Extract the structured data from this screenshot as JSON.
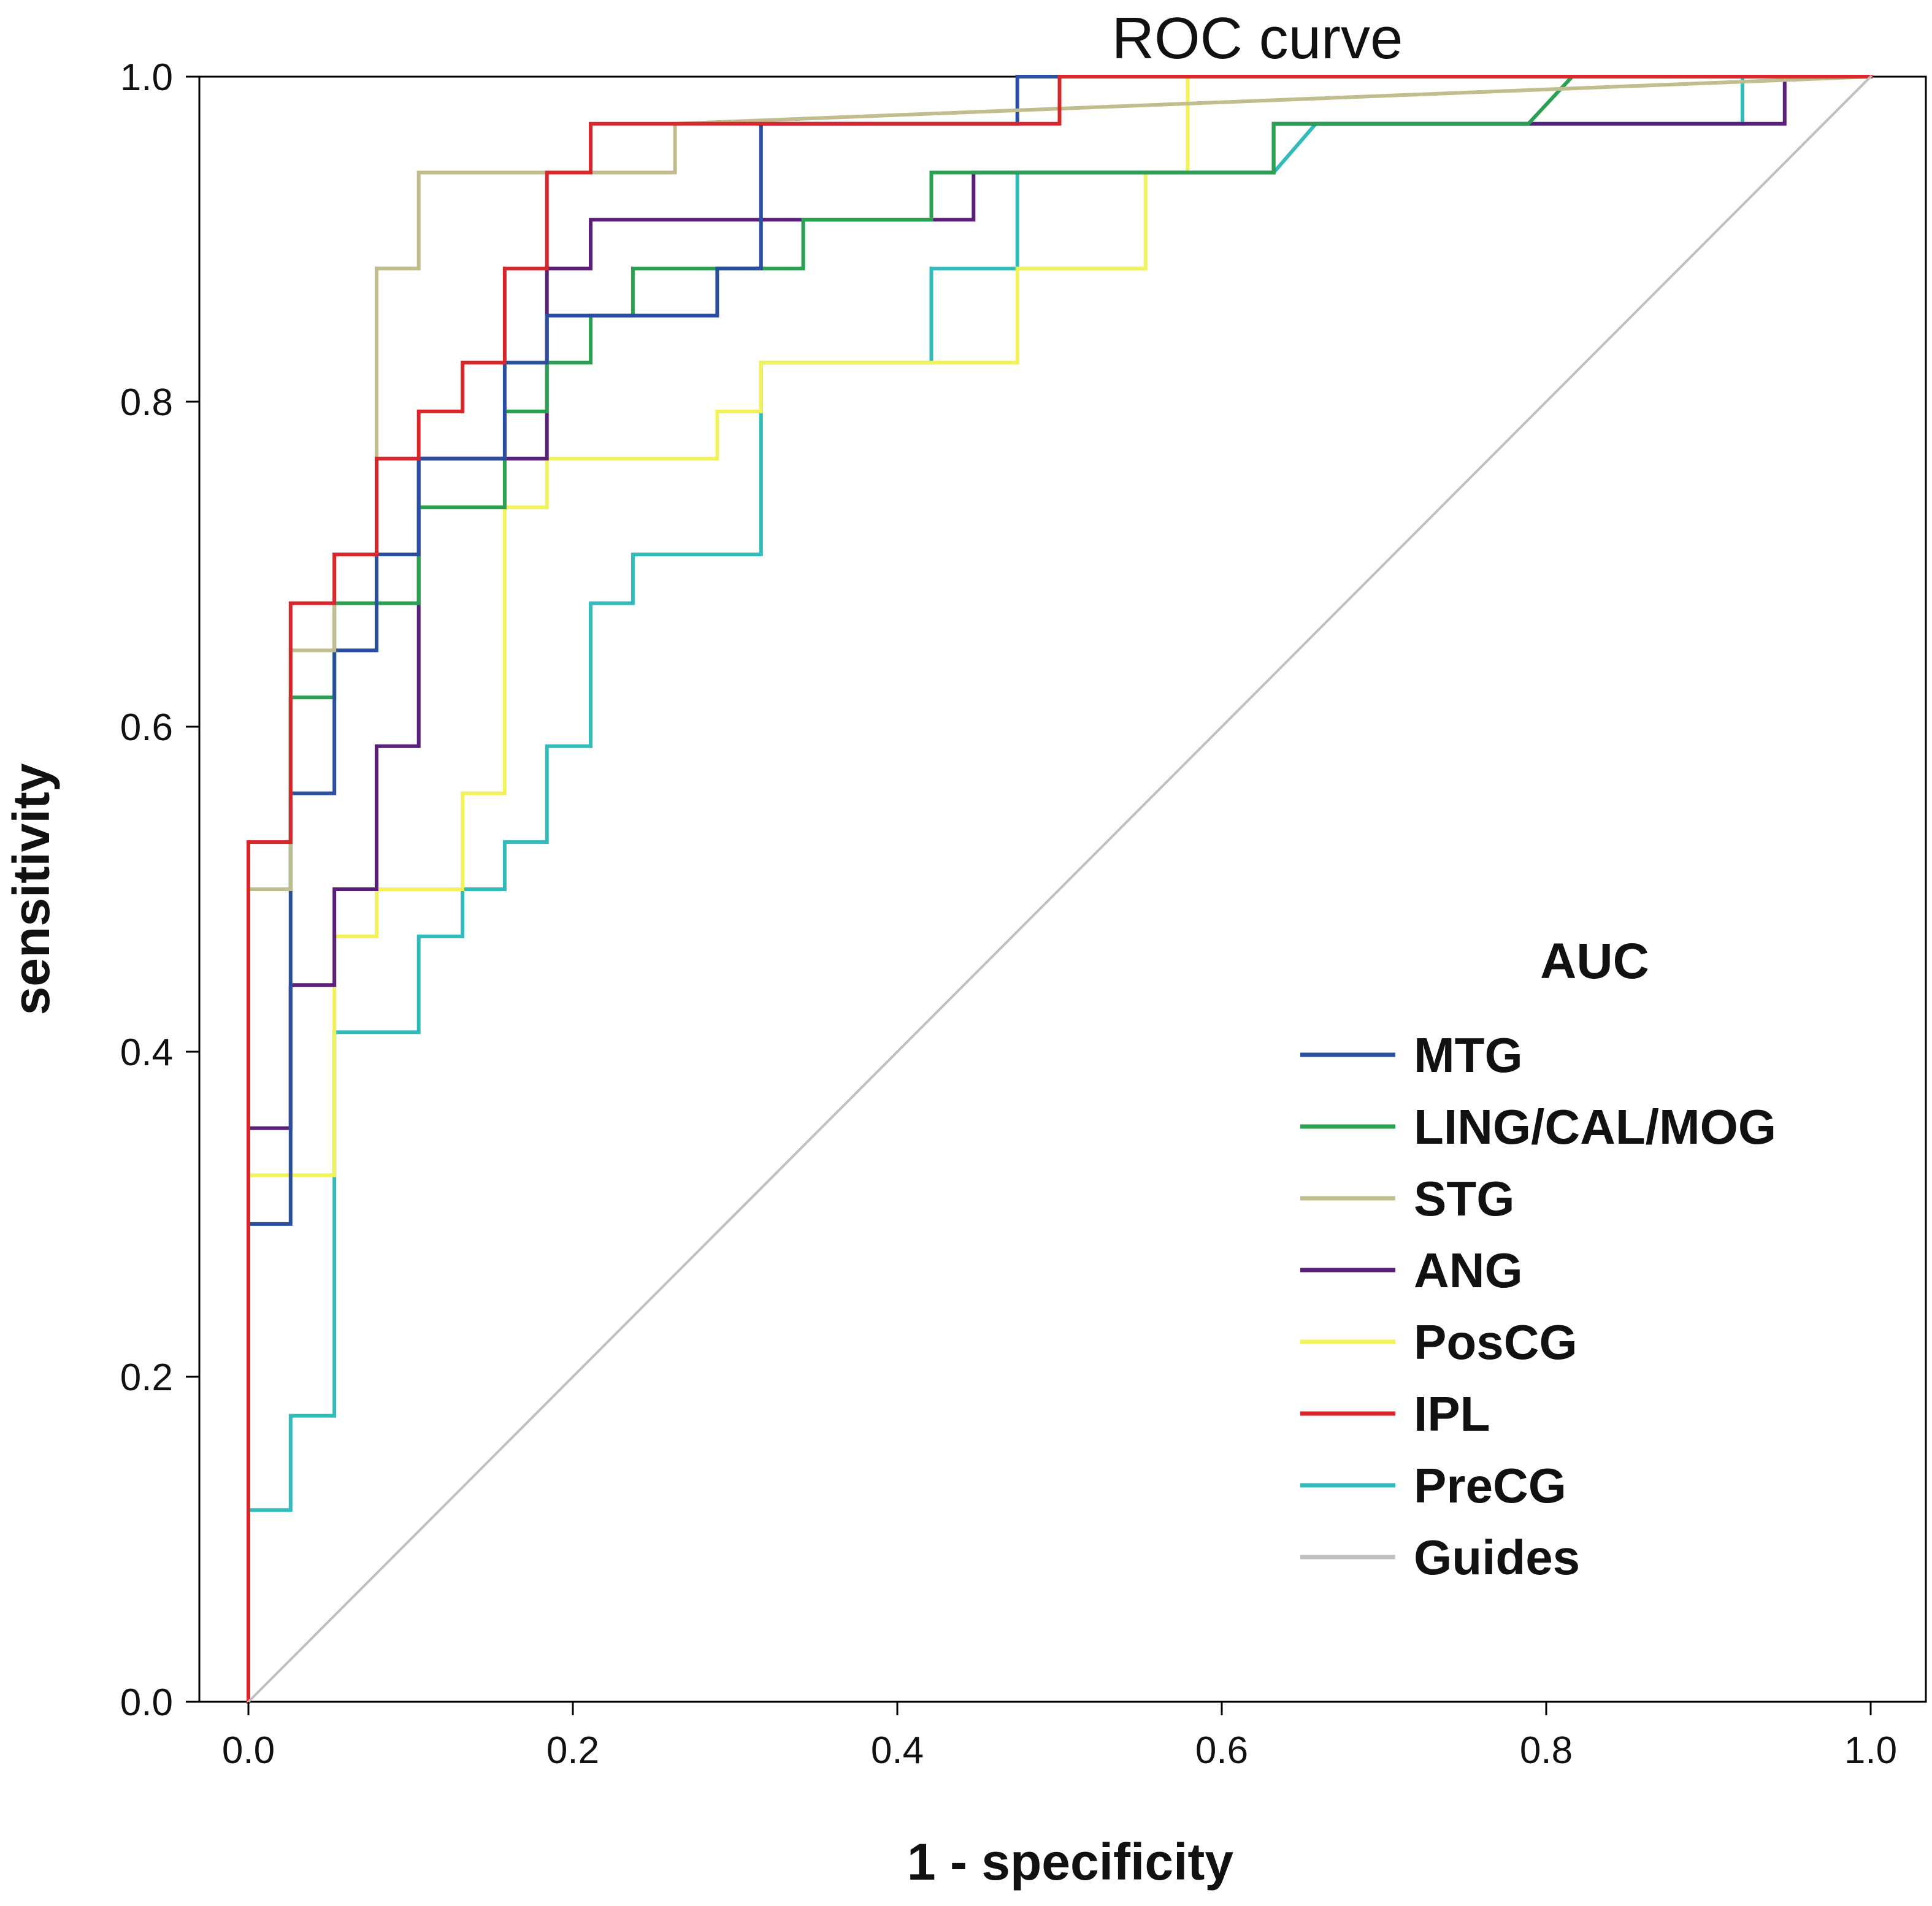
{
  "chart_data": {
    "type": "line",
    "title": "ROC curve",
    "xlabel": "1 - specificity",
    "ylabel": "sensitivity",
    "xlim": [
      0,
      1
    ],
    "ylim": [
      0,
      1
    ],
    "x_ticks": [
      "0.0",
      "0.2",
      "0.4",
      "0.6",
      "0.8",
      "1.0"
    ],
    "y_ticks": [
      "0.0",
      "0.2",
      "0.4",
      "0.6",
      "0.8",
      "1.0"
    ],
    "grid": false,
    "legend": {
      "title": "AUC",
      "position": "lower-right"
    },
    "series": [
      {
        "name": "PreCG",
        "color": "#33bbbb",
        "x": [
          0,
          0,
          0.026,
          0.026,
          0.053,
          0.053,
          0.105,
          0.105,
          0.132,
          0.132,
          0.158,
          0.158,
          0.184,
          0.184,
          0.211,
          0.211,
          0.237,
          0.237,
          0.316,
          0.316,
          0.421,
          0.421,
          0.474,
          0.474,
          0.632,
          0.658,
          0.921,
          0.921,
          1
        ],
        "y": [
          0,
          0.118,
          0.118,
          0.176,
          0.176,
          0.412,
          0.412,
          0.471,
          0.471,
          0.5,
          0.5,
          0.529,
          0.529,
          0.588,
          0.588,
          0.676,
          0.676,
          0.706,
          0.706,
          0.824,
          0.824,
          0.882,
          0.882,
          0.941,
          0.941,
          0.971,
          0.971,
          1,
          1
        ]
      },
      {
        "name": "PosCG",
        "color": "#f2f25a",
        "x": [
          0,
          0,
          0.053,
          0.053,
          0.079,
          0.079,
          0.132,
          0.132,
          0.158,
          0.158,
          0.184,
          0.184,
          0.289,
          0.289,
          0.316,
          0.316,
          0.474,
          0.474,
          0.553,
          0.553,
          0.579,
          0.579,
          1
        ],
        "y": [
          0,
          0.324,
          0.324,
          0.471,
          0.471,
          0.5,
          0.5,
          0.559,
          0.559,
          0.735,
          0.735,
          0.765,
          0.765,
          0.794,
          0.794,
          0.824,
          0.824,
          0.882,
          0.882,
          0.941,
          0.941,
          1,
          1
        ]
      },
      {
        "name": "ANG",
        "color": "#5a1f7a",
        "x": [
          0,
          0,
          0.026,
          0.026,
          0.053,
          0.053,
          0.079,
          0.079,
          0.105,
          0.105,
          0.184,
          0.184,
          0.211,
          0.211,
          0.447,
          0.447,
          0.632,
          0.632,
          0.947,
          0.947,
          1
        ],
        "y": [
          0,
          0.353,
          0.353,
          0.441,
          0.441,
          0.5,
          0.5,
          0.588,
          0.588,
          0.765,
          0.765,
          0.882,
          0.882,
          0.912,
          0.912,
          0.941,
          0.941,
          0.971,
          0.971,
          1,
          1
        ]
      },
      {
        "name": "LING/CAL/MOG",
        "color": "#2aa052",
        "x": [
          0,
          0,
          0.026,
          0.026,
          0.053,
          0.053,
          0.105,
          0.105,
          0.158,
          0.158,
          0.184,
          0.184,
          0.211,
          0.211,
          0.237,
          0.237,
          0.342,
          0.342,
          0.421,
          0.421,
          0.632,
          0.632,
          0.789,
          0.816,
          1
        ],
        "y": [
          0,
          0.5,
          0.5,
          0.618,
          0.618,
          0.676,
          0.676,
          0.735,
          0.735,
          0.794,
          0.794,
          0.824,
          0.824,
          0.853,
          0.853,
          0.882,
          0.882,
          0.912,
          0.912,
          0.941,
          0.941,
          0.971,
          0.971,
          1,
          1
        ]
      },
      {
        "name": "MTG",
        "color": "#2a4ea0",
        "x": [
          0,
          0,
          0.026,
          0.026,
          0.053,
          0.053,
          0.079,
          0.079,
          0.105,
          0.105,
          0.158,
          0.158,
          0.184,
          0.184,
          0.289,
          0.289,
          0.316,
          0.316,
          0.474,
          0.474,
          1
        ],
        "y": [
          0,
          0.294,
          0.294,
          0.559,
          0.559,
          0.647,
          0.647,
          0.706,
          0.706,
          0.765,
          0.765,
          0.824,
          0.824,
          0.853,
          0.853,
          0.882,
          0.882,
          0.971,
          0.971,
          1,
          1
        ]
      },
      {
        "name": "STG",
        "color": "#c2bd8e",
        "x": [
          0,
          0,
          0.026,
          0.026,
          0.053,
          0.053,
          0.079,
          0.079,
          0.105,
          0.105,
          0.263,
          0.263,
          1
        ],
        "y": [
          0,
          0.5,
          0.5,
          0.647,
          0.647,
          0.706,
          0.706,
          0.882,
          0.882,
          0.941,
          0.941,
          0.971,
          1
        ]
      },
      {
        "name": "IPL",
        "color": "#d9262a",
        "x": [
          0,
          0,
          0.026,
          0.026,
          0.053,
          0.053,
          0.079,
          0.079,
          0.105,
          0.105,
          0.132,
          0.132,
          0.158,
          0.158,
          0.184,
          0.184,
          0.211,
          0.211,
          0.5,
          0.5,
          1
        ],
        "y": [
          0,
          0.529,
          0.529,
          0.676,
          0.676,
          0.706,
          0.706,
          0.765,
          0.765,
          0.794,
          0.794,
          0.824,
          0.824,
          0.882,
          0.882,
          0.941,
          0.941,
          0.971,
          0.971,
          1,
          1
        ]
      },
      {
        "name": "Guides",
        "color": "#c0c0c0",
        "x": [
          0,
          1
        ],
        "y": [
          0,
          1
        ]
      }
    ],
    "legend_order": [
      "MTG",
      "LING/CAL/MOG",
      "STG",
      "ANG",
      "PosCG",
      "IPL",
      "PreCG",
      "Guides"
    ]
  }
}
